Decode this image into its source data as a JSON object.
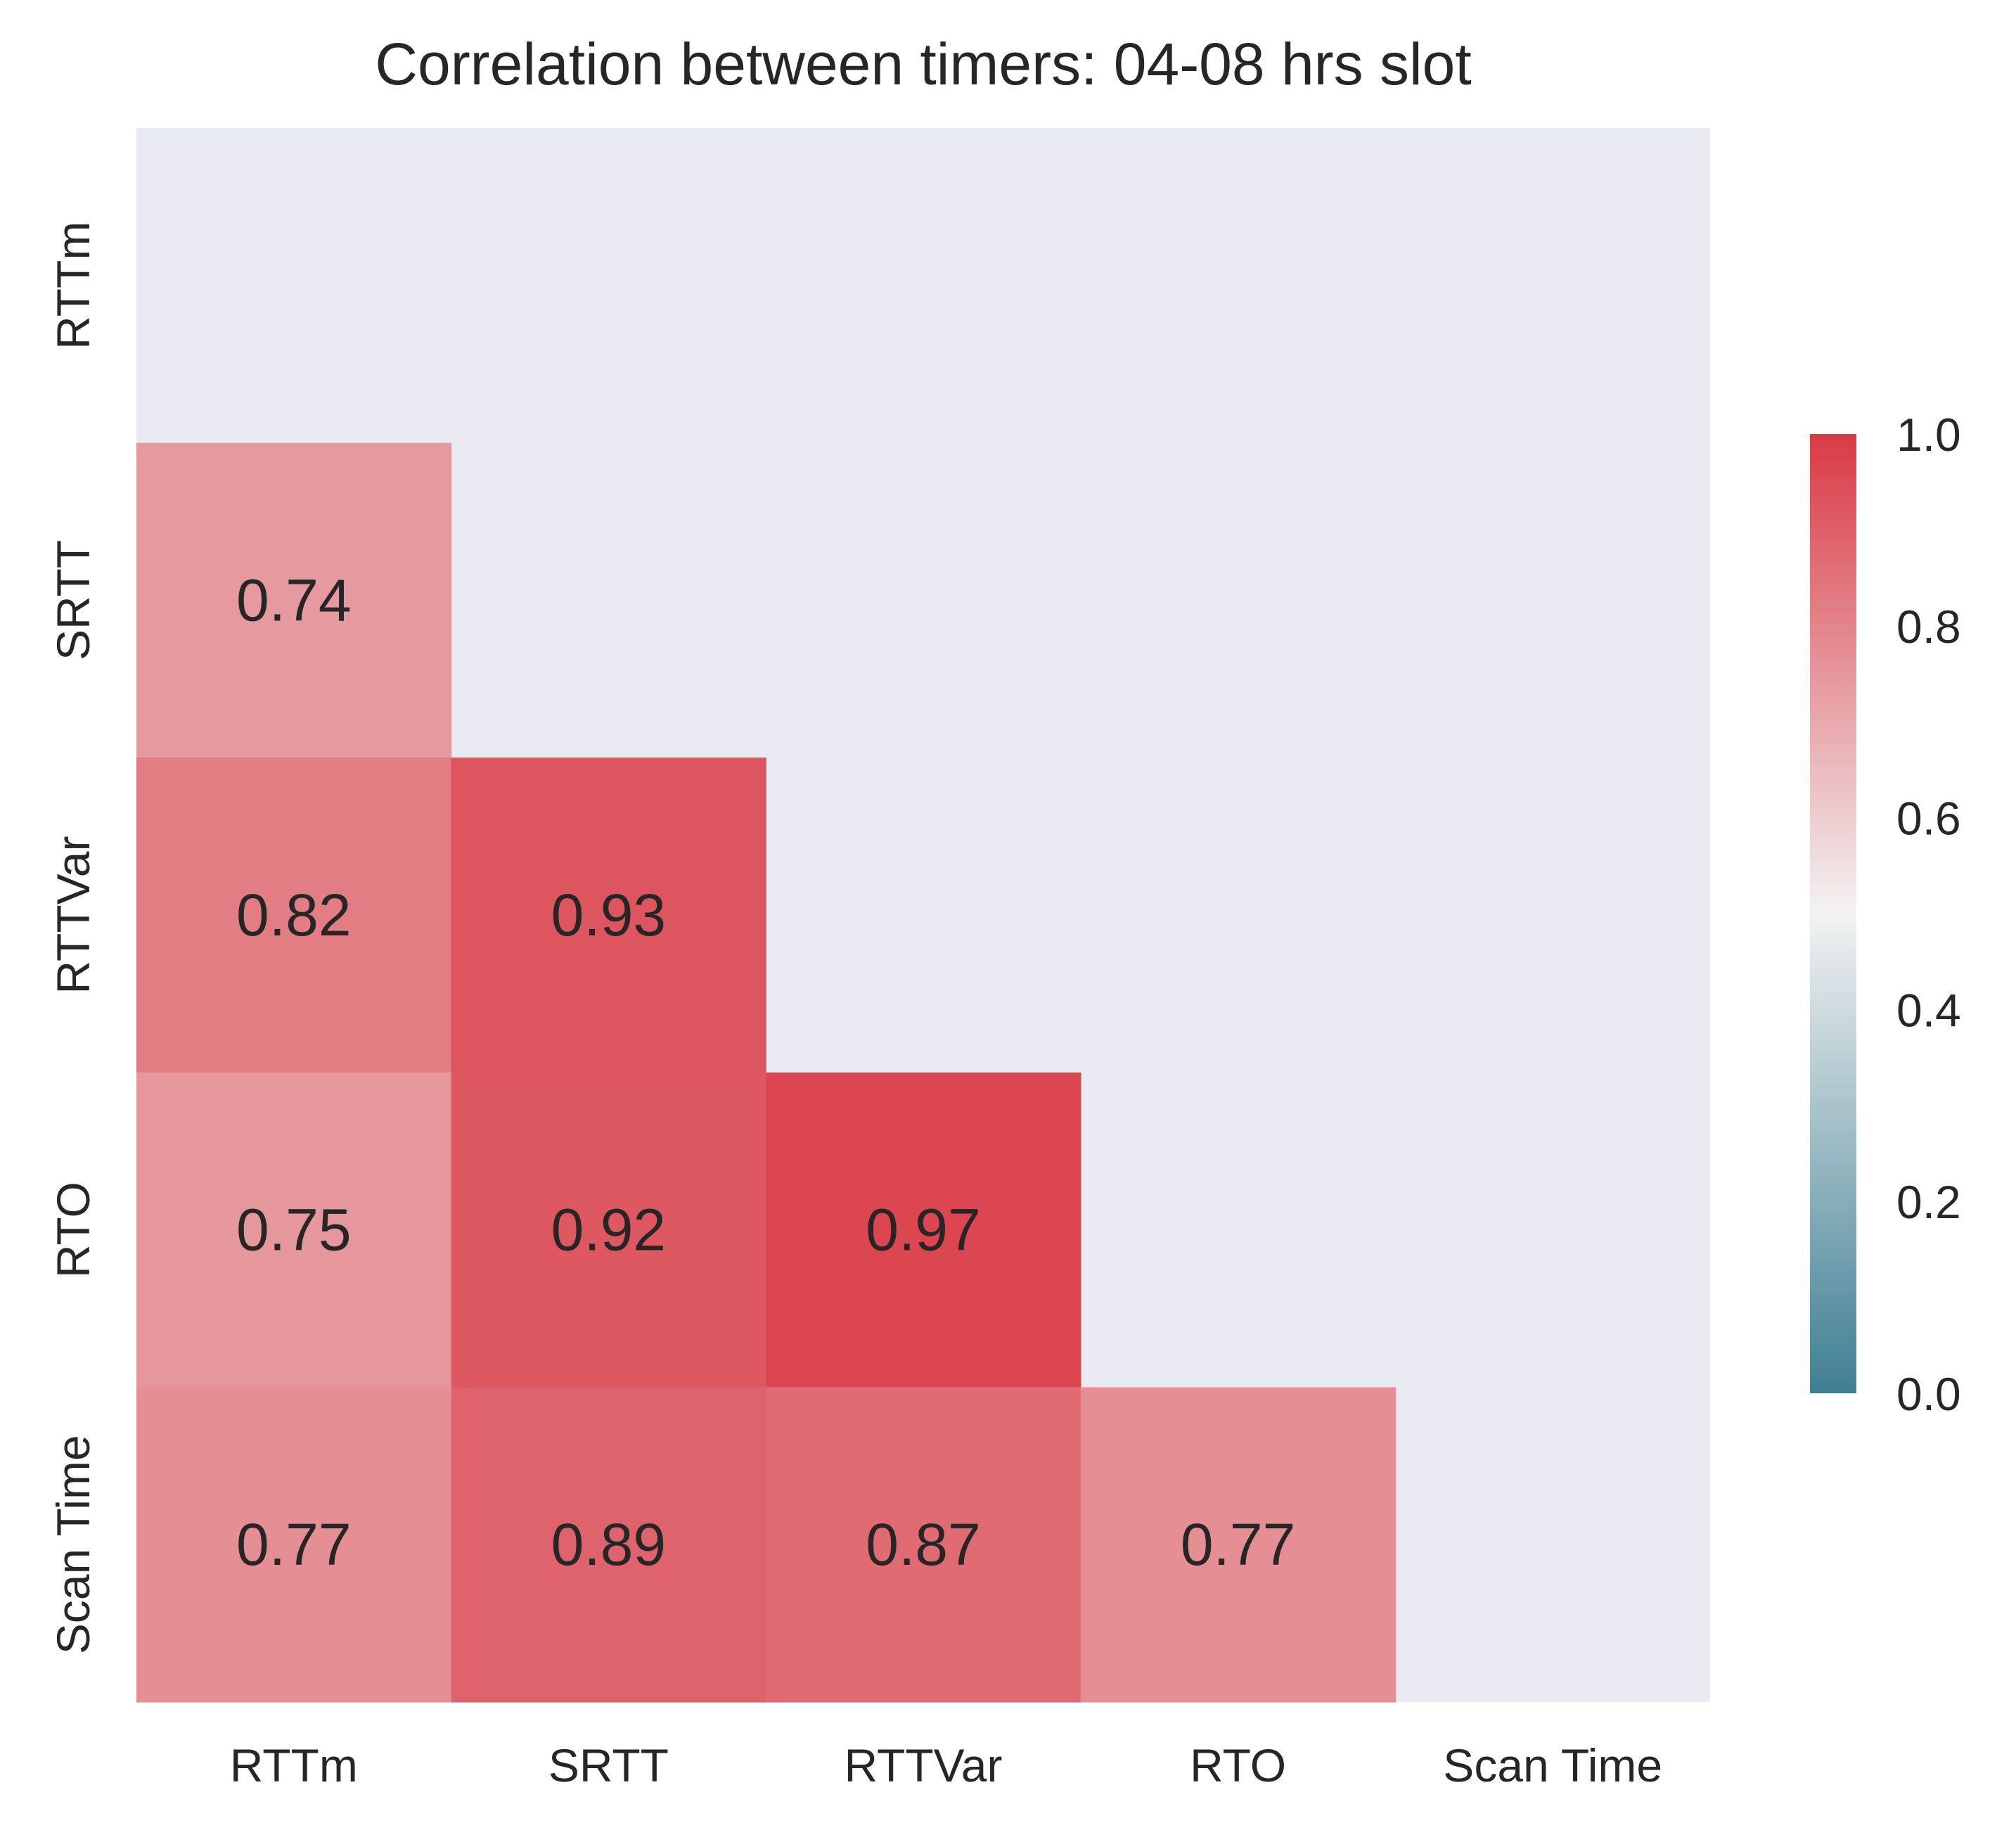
{
  "chart_data": {
    "type": "heatmap",
    "title": "Correlation between timers: 04-08 hrs slot",
    "xlabel": "",
    "ylabel": "",
    "x_categories": [
      "RTTm",
      "SRTT",
      "RTTVar",
      "RTO",
      "Scan Time"
    ],
    "y_categories": [
      "RTTm",
      "SRTT",
      "RTTVar",
      "RTO",
      "Scan Time"
    ],
    "mask": "upper-triangle-including-diagonal",
    "cells": [
      {
        "row": 1,
        "col": 0,
        "value": 0.74,
        "label": "0.74"
      },
      {
        "row": 2,
        "col": 0,
        "value": 0.82,
        "label": "0.82"
      },
      {
        "row": 2,
        "col": 1,
        "value": 0.93,
        "label": "0.93"
      },
      {
        "row": 3,
        "col": 0,
        "value": 0.75,
        "label": "0.75"
      },
      {
        "row": 3,
        "col": 1,
        "value": 0.92,
        "label": "0.92"
      },
      {
        "row": 3,
        "col": 2,
        "value": 0.97,
        "label": "0.97"
      },
      {
        "row": 4,
        "col": 0,
        "value": 0.77,
        "label": "0.77"
      },
      {
        "row": 4,
        "col": 1,
        "value": 0.89,
        "label": "0.89"
      },
      {
        "row": 4,
        "col": 2,
        "value": 0.87,
        "label": "0.87"
      },
      {
        "row": 4,
        "col": 3,
        "value": 0.77,
        "label": "0.77"
      }
    ],
    "colorbar": {
      "vmin": 0.0,
      "vmax": 1.0,
      "ticks": [
        "0.0",
        "0.2",
        "0.4",
        "0.6",
        "0.8",
        "1.0"
      ],
      "tick_values": [
        0.0,
        0.2,
        0.4,
        0.6,
        0.8,
        1.0
      ],
      "colormap": "diverging blue-white-red",
      "low_color": "#3f7f93",
      "mid_color": "#f2f2f2",
      "high_color": "#da3b46"
    },
    "grid": false,
    "masked_background": "#eaeaf2"
  }
}
